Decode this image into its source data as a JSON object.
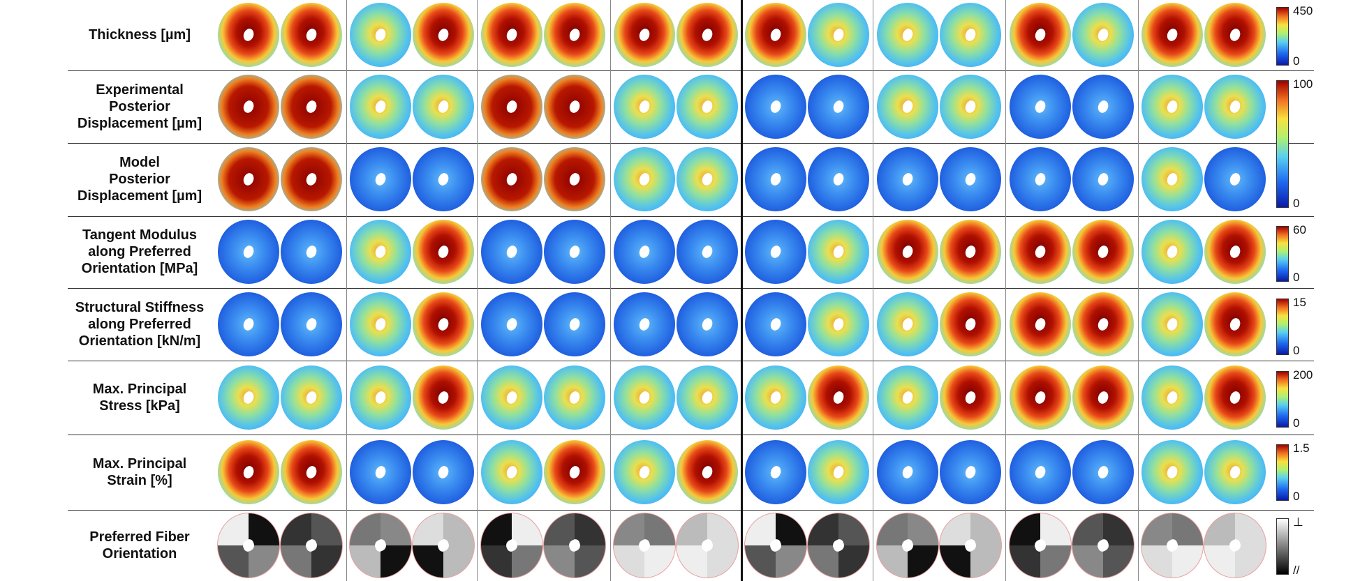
{
  "rows": [
    {
      "label_lines": [
        "Thickness [µm]"
      ]
    },
    {
      "label_lines": [
        "Experimental",
        "Posterior",
        "Displacement [µm]"
      ]
    },
    {
      "label_lines": [
        "Model",
        "Posterior",
        "Displacement [µm]"
      ]
    },
    {
      "label_lines": [
        "Tangent Modulus",
        "along Preferred",
        "Orientation [MPa]"
      ]
    },
    {
      "label_lines": [
        "Structural Stiffness",
        "along Preferred",
        "Orientation [kN/m]"
      ]
    },
    {
      "label_lines": [
        "Max. Principal",
        "Stress [kPa]"
      ]
    },
    {
      "label_lines": [
        "Max. Principal",
        "Strain [%]"
      ]
    },
    {
      "label_lines": [
        "Preferred Fiber",
        "Orientation"
      ]
    }
  ],
  "colorbars": [
    {
      "max": "450",
      "min": "0"
    },
    {
      "max": "100",
      "min": "0"
    },
    {
      "max": "60",
      "min": "0"
    },
    {
      "max": "15",
      "min": "0"
    },
    {
      "max": "200",
      "min": "0"
    },
    {
      "max": "1.5",
      "min": "0"
    },
    {
      "max": "⊥",
      "min": "//"
    }
  ]
}
